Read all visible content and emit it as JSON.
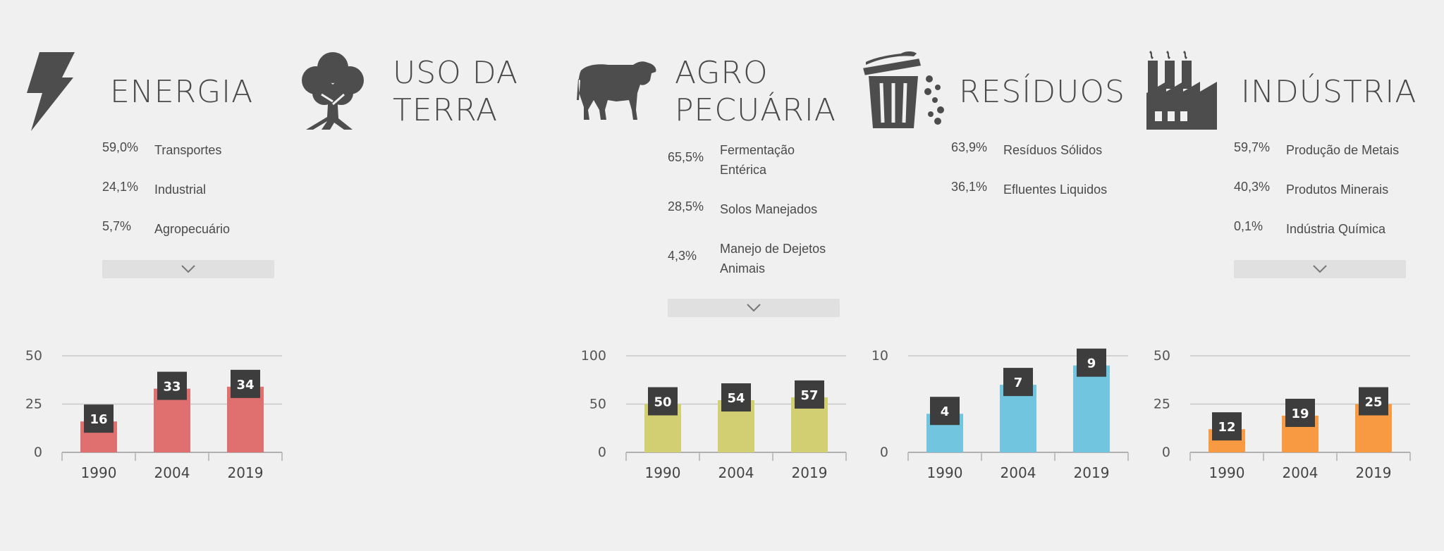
{
  "sectors": [
    {
      "key": "energia",
      "title_lines": [
        "ENERGIA"
      ],
      "icon": "lightning-icon",
      "breakdown": [
        {
          "pct": "59,0%",
          "label": "Transportes"
        },
        {
          "pct": "24,1%",
          "label": "Industrial"
        },
        {
          "pct": "5,7%",
          "label": "Agropecuário"
        }
      ],
      "expand_icon": "chevron-down-icon"
    },
    {
      "key": "uso-da-terra",
      "title_lines": [
        "USO DA",
        "TERRA"
      ],
      "icon": "tree-icon",
      "breakdown": []
    },
    {
      "key": "agropecuaria",
      "title_lines": [
        "AGRO",
        "PECUÁRIA"
      ],
      "icon": "cow-icon",
      "breakdown": [
        {
          "pct": "65,5%",
          "label": "Fermentação Entérica"
        },
        {
          "pct": "28,5%",
          "label": "Solos Manejados"
        },
        {
          "pct": "4,3%",
          "label": "Manejo de Dejetos Animais"
        }
      ],
      "expand_icon": "chevron-down-icon"
    },
    {
      "key": "residuos",
      "title_lines": [
        "RESÍDUOS"
      ],
      "icon": "trash-can-icon",
      "breakdown": [
        {
          "pct": "63,9%",
          "label": "Resíduos Sólidos"
        },
        {
          "pct": "36,1%",
          "label": "Efluentes Liquidos"
        }
      ]
    },
    {
      "key": "industria",
      "title_lines": [
        "INDÚSTRIA"
      ],
      "icon": "factory-icon",
      "breakdown": [
        {
          "pct": "59,7%",
          "label": "Produção de Metais"
        },
        {
          "pct": "40,3%",
          "label": "Produtos Minerais"
        },
        {
          "pct": "0,1%",
          "label": "Indústria Química"
        }
      ],
      "expand_icon": "chevron-down-icon"
    }
  ],
  "chart_data": [
    {
      "sector": "energia",
      "type": "bar",
      "categories": [
        "1990",
        "2004",
        "2019"
      ],
      "values": [
        16,
        33,
        34
      ],
      "yticks": [
        0,
        25,
        50
      ],
      "ylim": [
        0,
        50
      ],
      "color": "#e07070",
      "grid": true
    },
    {
      "sector": "agropecuaria",
      "type": "bar",
      "categories": [
        "1990",
        "2004",
        "2019"
      ],
      "values": [
        50,
        54,
        57
      ],
      "yticks": [
        0,
        50,
        100
      ],
      "ylim": [
        0,
        100
      ],
      "color": "#d2cf73",
      "grid": true
    },
    {
      "sector": "residuos",
      "type": "bar",
      "categories": [
        "1990",
        "2004",
        "2019"
      ],
      "values": [
        4,
        7,
        9
      ],
      "yticks": [
        0,
        10
      ],
      "ylim": [
        0,
        10
      ],
      "color": "#72c5de",
      "grid": true
    },
    {
      "sector": "industria",
      "type": "bar",
      "categories": [
        "1990",
        "2004",
        "2019"
      ],
      "values": [
        12,
        19,
        25
      ],
      "yticks": [
        0,
        25,
        50
      ],
      "ylim": [
        0,
        50
      ],
      "color": "#f79a41",
      "grid": true
    }
  ]
}
